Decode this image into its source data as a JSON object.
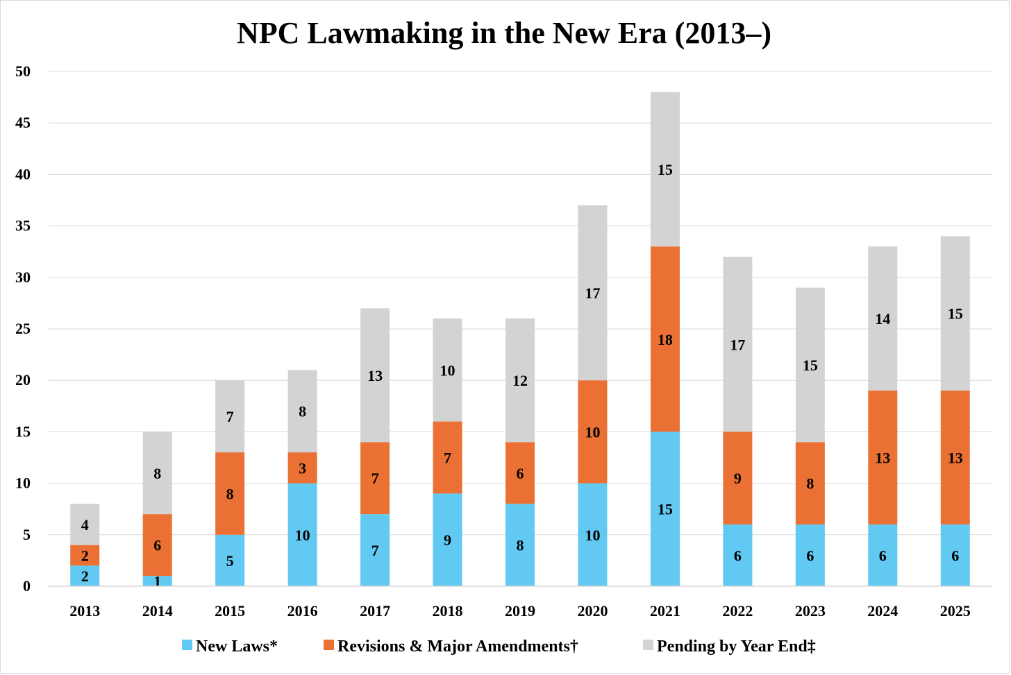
{
  "chart_data": {
    "type": "bar",
    "stacked": true,
    "title": "NPC Lawmaking in the New Era (2013–)",
    "xlabel": "",
    "ylabel": "",
    "ylim": [
      0,
      50
    ],
    "yticks": [
      0,
      5,
      10,
      15,
      20,
      25,
      30,
      35,
      40,
      45,
      50
    ],
    "grid": true,
    "legend_position": "bottom",
    "categories": [
      "2013",
      "2014",
      "2015",
      "2016",
      "2017",
      "2018",
      "2019",
      "2020",
      "2021",
      "2022",
      "2023",
      "2024",
      "2025"
    ],
    "series": [
      {
        "name": "New Laws*",
        "color": "#61c9f2",
        "values": [
          2,
          1,
          5,
          10,
          7,
          9,
          8,
          10,
          15,
          6,
          6,
          6,
          6
        ]
      },
      {
        "name": "Revisions & Major Amendments†",
        "color": "#ea7133",
        "values": [
          2,
          6,
          8,
          3,
          7,
          7,
          6,
          10,
          18,
          9,
          8,
          13,
          13
        ]
      },
      {
        "name": "Pending by Year End‡",
        "color": "#d3d3d3",
        "values": [
          4,
          8,
          7,
          8,
          13,
          10,
          12,
          17,
          15,
          17,
          15,
          14,
          15
        ]
      }
    ]
  },
  "colors": {
    "gridline": "#d9d9d9",
    "axis": "#d9d9d9",
    "text": "#000000",
    "background": "#ffffff"
  }
}
